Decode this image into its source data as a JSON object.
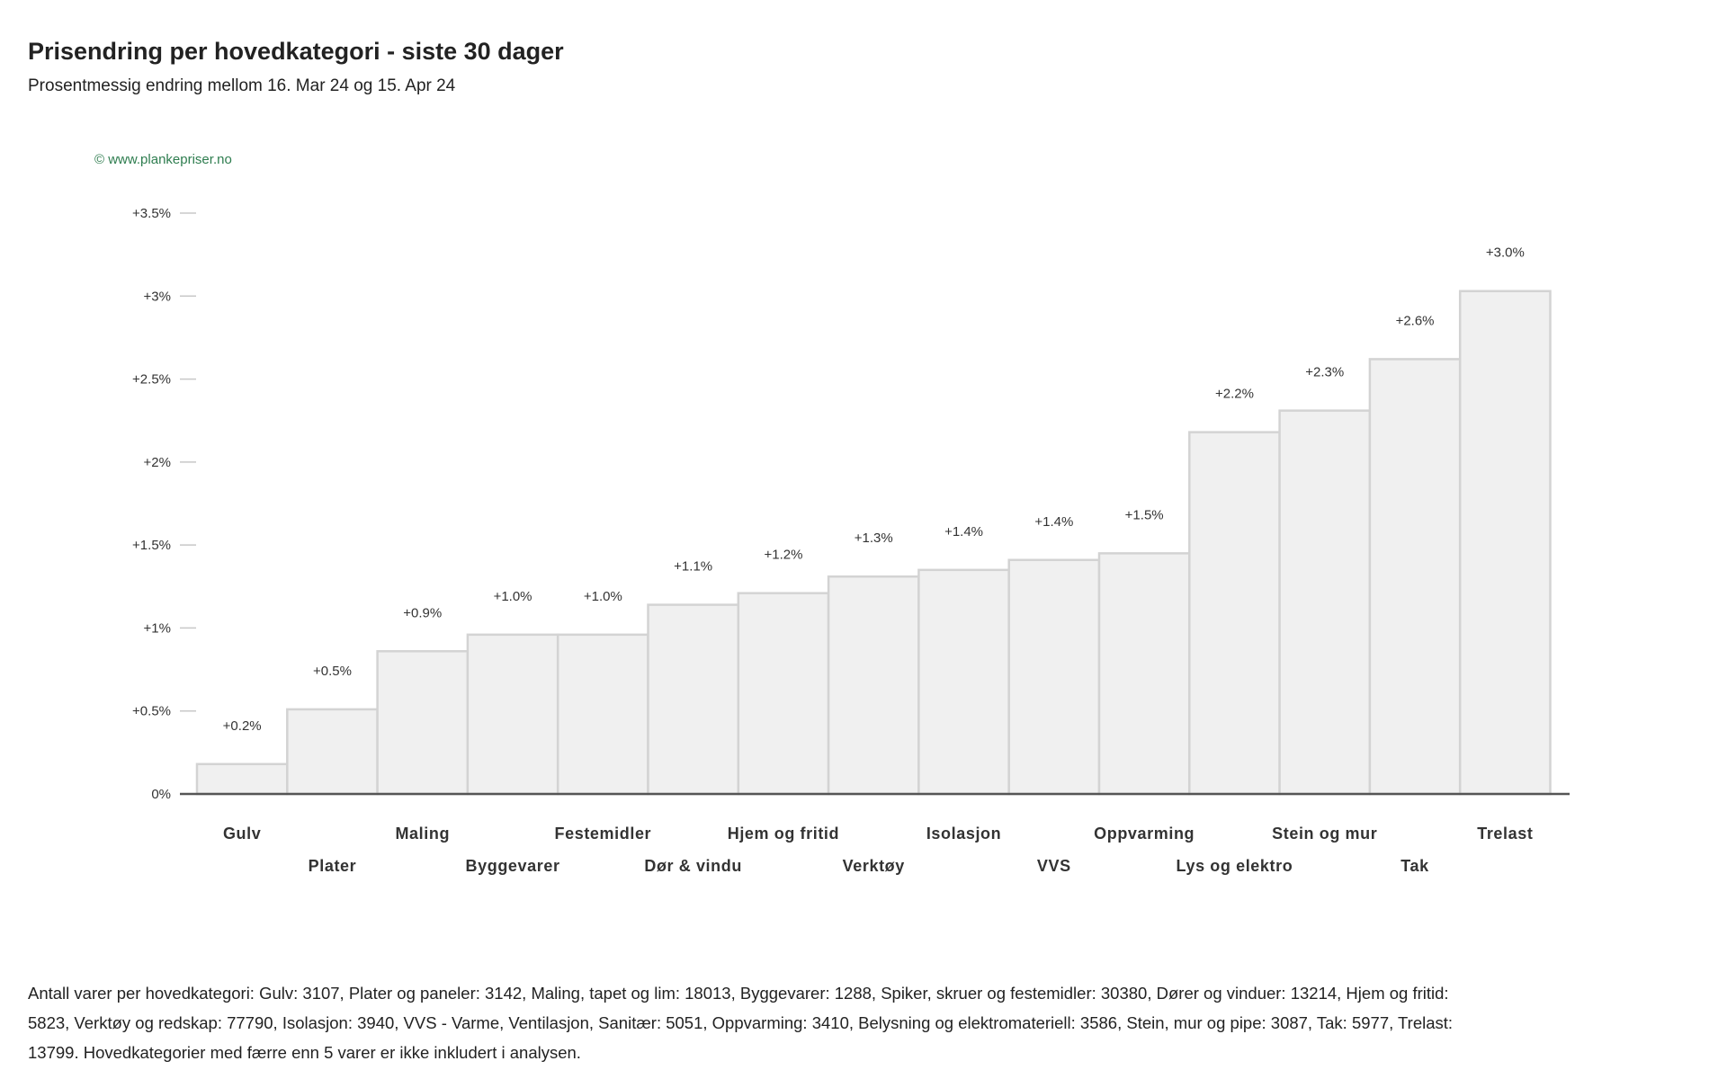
{
  "header": {
    "title": "Prisendring per hovedkategori - siste 30 dager",
    "subtitle": "Prosentmessig endring mellom 16. Mar 24 og 15. Apr 24"
  },
  "chart_data": {
    "type": "bar",
    "watermark": "© www.plankepriser.no",
    "categories": [
      "Gulv",
      "Plater",
      "Maling",
      "Byggevarer",
      "Festemidler",
      "Dør & vindu",
      "Hjem og fritid",
      "Verktøy",
      "Isolasjon",
      "VVS",
      "Oppvarming",
      "Lys og elektro",
      "Stein og mur",
      "Tak",
      "Trelast"
    ],
    "values": [
      0.18,
      0.51,
      0.86,
      0.96,
      0.96,
      1.14,
      1.21,
      1.31,
      1.35,
      1.41,
      1.45,
      2.18,
      2.31,
      2.62,
      3.03
    ],
    "data_labels": [
      "+0.2%",
      "+0.5%",
      "+0.9%",
      "+1.0%",
      "+1.0%",
      "+1.1%",
      "+1.2%",
      "+1.3%",
      "+1.4%",
      "+1.4%",
      "+1.5%",
      "+2.2%",
      "+2.3%",
      "+2.6%",
      "+3.0%"
    ],
    "y_ticks": [
      0,
      0.5,
      1,
      1.5,
      2,
      2.5,
      3,
      3.5
    ],
    "y_tick_labels": [
      "0%",
      "+0.5%",
      "+1%",
      "+1.5%",
      "+2%",
      "+2.5%",
      "+3%",
      "+3.5%"
    ],
    "ylim": [
      0,
      3.5
    ],
    "grid": false,
    "legend": "none",
    "colors": {
      "bar_fill": "#f0f0f0",
      "bar_stroke": "#d3d3d3",
      "axis": "#555555",
      "tick_mark": "#c8c8c8",
      "label_text": "#333333",
      "watermark": "#2e7d4f"
    }
  },
  "footnote": {
    "text": "Antall varer per hovedkategori: Gulv: 3107, Plater og paneler: 3142, Maling, tapet og lim: 18013, Byggevarer: 1288, Spiker, skruer og festemidler: 30380, Dører og vinduer: 13214, Hjem og fritid: 5823, Verktøy og redskap: 77790, Isolasjon: 3940, VVS - Varme, Ventilasjon, Sanitær: 5051, Oppvarming: 3410, Belysning og elektromateriell: 3586, Stein, mur og pipe: 3087, Tak: 5977, Trelast: 13799. Hovedkategorier med færre enn 5 varer er ikke inkludert i analysen."
  }
}
